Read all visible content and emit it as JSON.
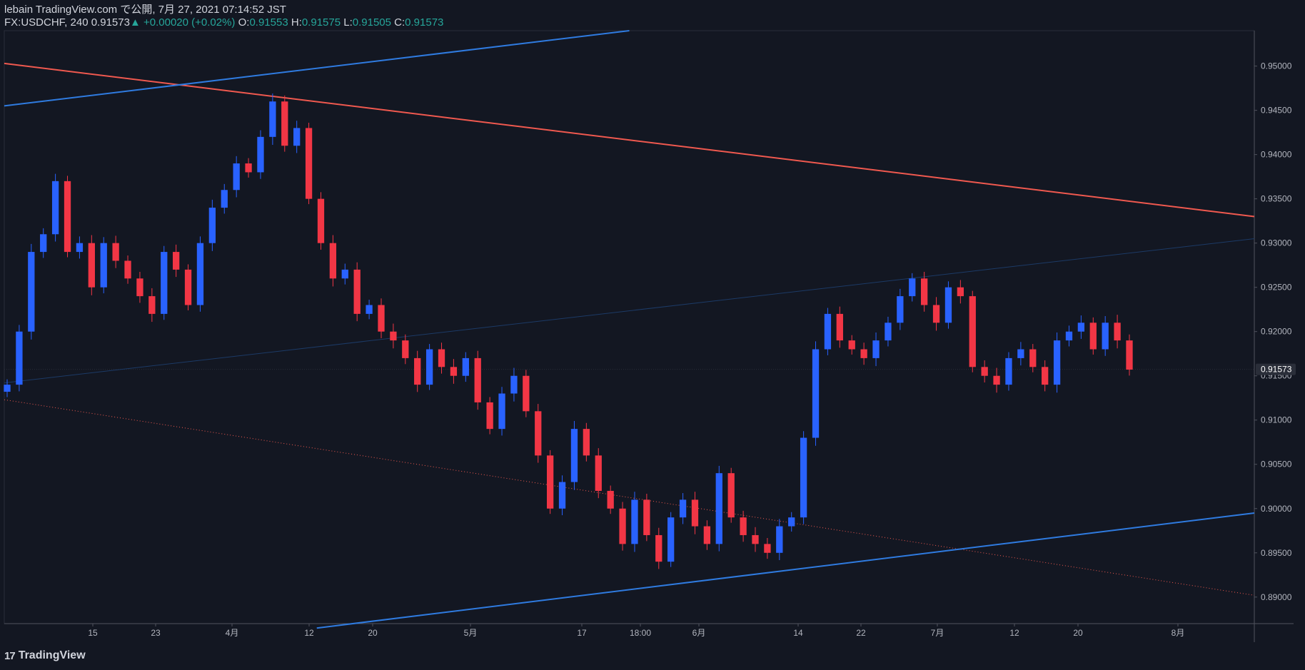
{
  "header": {
    "published": "lebain TradingView.com で公開, 7月 27, 2021 07:14:52 JST",
    "symbol": "FX:USDCHF, 240",
    "last": "0.91573",
    "change": "+0.00020 (+0.02%)",
    "o_label": "O:",
    "o_value": "0.91553",
    "h_label": "H:",
    "h_value": "0.91575",
    "l_label": "L:",
    "l_value": "0.91505",
    "c_label": "C:",
    "c_value": "0.91573"
  },
  "brand": "TradingView",
  "colors": {
    "background": "#131722",
    "up": "#2962ff",
    "down": "#f23645",
    "resistance": "#f0594f",
    "support": "#2f7be0",
    "text": "#d1d4dc",
    "green": "#26a69a"
  },
  "chart_data": {
    "type": "candlestick",
    "symbol": "FX:USDCHF",
    "interval": "240",
    "price_axis_labels": [
      "0.95000",
      "0.94500",
      "0.94000",
      "0.93500",
      "0.93000",
      "0.92500",
      "0.92000",
      "0.91500",
      "0.91000",
      "0.90500",
      "0.90000",
      "0.89500",
      "0.89000"
    ],
    "time_axis_labels": [
      "15",
      "23",
      "4月",
      "12",
      "20",
      "5月",
      "17",
      "18:00",
      "6月",
      "14",
      "22",
      "7月",
      "12",
      "20",
      "8月"
    ],
    "current_price": "0.91573",
    "ylim": [
      0.887,
      0.954
    ],
    "close_series": [
      0.914,
      0.92,
      0.929,
      0.931,
      0.937,
      0.929,
      0.93,
      0.925,
      0.93,
      0.928,
      0.926,
      0.924,
      0.922,
      0.929,
      0.927,
      0.923,
      0.93,
      0.934,
      0.936,
      0.939,
      0.938,
      0.942,
      0.946,
      0.941,
      0.943,
      0.935,
      0.93,
      0.926,
      0.927,
      0.922,
      0.923,
      0.92,
      0.919,
      0.917,
      0.914,
      0.918,
      0.916,
      0.915,
      0.917,
      0.912,
      0.909,
      0.913,
      0.915,
      0.911,
      0.906,
      0.9,
      0.903,
      0.909,
      0.906,
      0.902,
      0.9,
      0.896,
      0.901,
      0.897,
      0.894,
      0.899,
      0.901,
      0.898,
      0.896,
      0.904,
      0.899,
      0.897,
      0.896,
      0.895,
      0.898,
      0.899,
      0.908,
      0.918,
      0.922,
      0.919,
      0.918,
      0.917,
      0.919,
      0.921,
      0.924,
      0.926,
      0.923,
      0.921,
      0.925,
      0.924,
      0.916,
      0.915,
      0.914,
      0.917,
      0.918,
      0.916,
      0.914,
      0.919,
      0.92,
      0.921,
      0.918,
      0.921,
      0.919,
      0.9157
    ],
    "trendlines": [
      {
        "name": "resistance",
        "from": [
          0,
          0.9503
        ],
        "to": [
          1,
          0.933
        ],
        "style": "solid"
      },
      {
        "name": "lower-parallel",
        "from": [
          0,
          0.9123
        ],
        "to": [
          1,
          0.8902
        ],
        "style": "dotted"
      },
      {
        "name": "upper-channel",
        "from": [
          0,
          0.9455
        ],
        "to": [
          0.5,
          0.954
        ],
        "style": "solid"
      },
      {
        "name": "lower-channel",
        "from": [
          0.25,
          0.8865
        ],
        "to": [
          1,
          0.8995
        ],
        "style": "solid"
      },
      {
        "name": "mid-channel",
        "from": [
          0,
          0.9142
        ],
        "to": [
          1,
          0.9305
        ],
        "style": "thin"
      }
    ]
  }
}
